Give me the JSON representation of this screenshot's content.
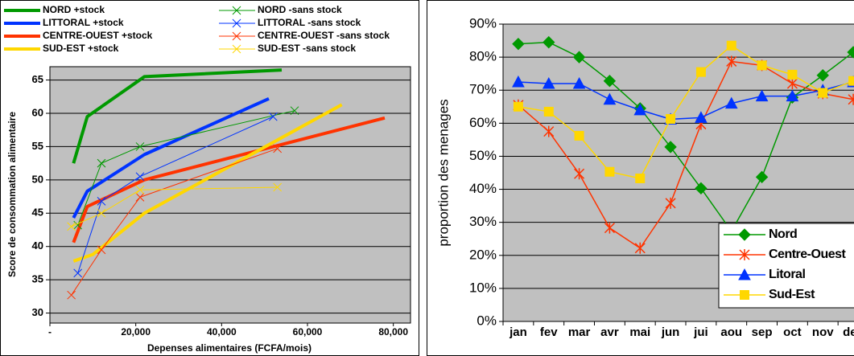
{
  "chart_data": [
    {
      "type": "line",
      "x_label": "Depenses alimentaires (FCFA/mois)",
      "y_label": "Score de consommation alimentaire",
      "xlim": [
        0,
        84000
      ],
      "xticks": [
        {
          "value": 0,
          "label": "-"
        },
        {
          "value": 20000,
          "label": "20,000"
        },
        {
          "value": 40000,
          "label": "40,000"
        },
        {
          "value": 60000,
          "label": "60,000"
        },
        {
          "value": 80000,
          "label": "80,000"
        }
      ],
      "ylim": [
        28.5,
        67
      ],
      "yticks": [
        30,
        35,
        40,
        45,
        50,
        55,
        60,
        65
      ],
      "grid": true,
      "legend": "top",
      "series": [
        {
          "name": "NORD +stock",
          "color": "#009900",
          "line_width": 4,
          "marker": "none",
          "x": [
            5500,
            8700,
            22000,
            54000
          ],
          "values": [
            52.5,
            59.5,
            65.5,
            66.5
          ]
        },
        {
          "name": "LITTORAL +stock",
          "color": "#0033ff",
          "line_width": 4,
          "marker": "none",
          "x": [
            5500,
            8700,
            22000,
            51000
          ],
          "values": [
            44.3,
            48.3,
            53.8,
            62.2
          ]
        },
        {
          "name": "CENTRE-OUEST +stock",
          "color": "#ff3300",
          "line_width": 4,
          "marker": "none",
          "x": [
            5500,
            8700,
            22000,
            78000
          ],
          "values": [
            40.6,
            46.0,
            50.0,
            59.3
          ]
        },
        {
          "name": "SUD-EST +stock",
          "color": "#ffd700",
          "line_width": 4,
          "marker": "none",
          "x": [
            5500,
            10000,
            22000,
            68000
          ],
          "values": [
            37.8,
            38.8,
            45.0,
            61.3
          ]
        },
        {
          "name": "NORD -sans stock",
          "color": "#009900",
          "line_width": 1,
          "marker": "x",
          "x": [
            6500,
            12000,
            21000,
            57000
          ],
          "values": [
            43.2,
            52.5,
            55.0,
            60.4
          ]
        },
        {
          "name": "LITTORAL -sans stock",
          "color": "#0033ff",
          "line_width": 1,
          "marker": "x",
          "x": [
            6500,
            12000,
            21000,
            52000
          ],
          "values": [
            36.0,
            46.8,
            50.5,
            59.5
          ]
        },
        {
          "name": "CENTRE-OUEST -sans stock",
          "color": "#ff3300",
          "line_width": 1,
          "marker": "x",
          "x": [
            5000,
            12000,
            21000,
            53000
          ],
          "values": [
            32.7,
            39.5,
            47.4,
            54.7
          ]
        },
        {
          "name": "SUD-EST -sans stock",
          "color": "#ffd700",
          "line_width": 1,
          "marker": "x",
          "x": [
            5000,
            12000,
            21000,
            53000
          ],
          "values": [
            43.0,
            45.0,
            48.5,
            48.9
          ]
        }
      ]
    },
    {
      "type": "line",
      "y_label": "proportion des menages",
      "categories": [
        "jan",
        "fev",
        "mar",
        "avr",
        "mai",
        "jun",
        "jui",
        "aou",
        "sep",
        "oct",
        "nov",
        "dec"
      ],
      "ylim": [
        0,
        90
      ],
      "yticks": [
        {
          "value": 0,
          "label": "0%"
        },
        {
          "value": 10,
          "label": "10%"
        },
        {
          "value": 20,
          "label": "20%"
        },
        {
          "value": 30,
          "label": "30%"
        },
        {
          "value": 40,
          "label": "40%"
        },
        {
          "value": 50,
          "label": "50%"
        },
        {
          "value": 60,
          "label": "60%"
        },
        {
          "value": 70,
          "label": "70%"
        },
        {
          "value": 80,
          "label": "80%"
        },
        {
          "value": 90,
          "label": "90%"
        }
      ],
      "grid": true,
      "legend": "bottom-right",
      "series": [
        {
          "name": "Nord",
          "color": "#009900",
          "marker": "diamond",
          "values": [
            84,
            84.5,
            80,
            72.8,
            64.5,
            52.8,
            40.3,
            27.3,
            43.7,
            67.8,
            74.5,
            81.5
          ]
        },
        {
          "name": "Centre-Ouest",
          "color": "#ff3300",
          "marker": "asterisk",
          "values": [
            65.5,
            57.5,
            44.7,
            28.3,
            22.2,
            35.8,
            59.7,
            78.7,
            77.5,
            72.0,
            69.0,
            67.2
          ]
        },
        {
          "name": "Litoral",
          "color": "#0033ff",
          "marker": "triangle",
          "values": [
            72.5,
            72.0,
            72.0,
            67.2,
            64.0,
            61.2,
            61.7,
            66.0,
            68.2,
            68.2,
            70.0,
            72.5
          ]
        },
        {
          "name": "Sud-Est",
          "color": "#ffd700",
          "marker": "square",
          "values": [
            65.0,
            63.5,
            56.2,
            45.3,
            43.3,
            61.3,
            75.5,
            83.5,
            77.5,
            74.7,
            69.2,
            72.8
          ]
        }
      ]
    }
  ]
}
